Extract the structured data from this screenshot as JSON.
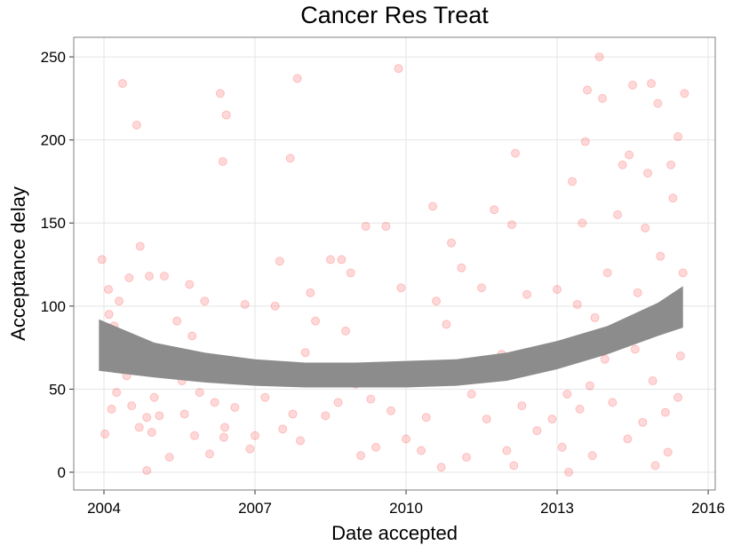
{
  "chart_data": {
    "type": "scatter",
    "title": "Cancer Res Treat",
    "x_label": "Date accepted",
    "y_label": "Acceptance delay",
    "color": "#ff0000",
    "x": [
      2003.96,
      2004.02,
      2004.09,
      2004.1,
      2004.15,
      2004.2,
      2004.25,
      2004.3,
      2004.37,
      2004.45,
      2004.5,
      2004.55,
      2004.65,
      2004.72,
      2004.7,
      2004.8,
      2004.85,
      2004.9,
      2004.95,
      2004.85,
      2005.0,
      2005.1,
      2005.2,
      2005.3,
      2005.35,
      2005.45,
      2005.55,
      2005.6,
      2005.7,
      2005.75,
      2005.8,
      2005.9,
      2006.0,
      2006.1,
      2006.2,
      2006.31,
      2006.36,
      2006.43,
      2006.4,
      2006.38,
      2006.6,
      2006.8,
      2006.9,
      2007.0,
      2007.1,
      2007.2,
      2007.4,
      2007.49,
      2007.55,
      2007.7,
      2007.75,
      2007.84,
      2007.9,
      2008.0,
      2008.1,
      2008.2,
      2008.4,
      2008.5,
      2008.65,
      2008.72,
      2008.8,
      2008.9,
      2009.0,
      2009.1,
      2009.2,
      2009.3,
      2009.4,
      2009.6,
      2009.7,
      2009.85,
      2009.9,
      2010.0,
      2010.1,
      2010.3,
      2010.4,
      2010.53,
      2010.6,
      2010.7,
      2010.8,
      2010.9,
      2011.1,
      2011.2,
      2011.3,
      2011.5,
      2011.6,
      2011.75,
      2011.9,
      2012.0,
      2012.1,
      2012.14,
      2012.17,
      2012.3,
      2012.4,
      2012.6,
      2012.8,
      2012.9,
      2013.0,
      2013.1,
      2013.2,
      2013.23,
      2013.3,
      2013.4,
      2013.45,
      2013.5,
      2013.56,
      2013.6,
      2013.65,
      2013.7,
      2013.75,
      2013.84,
      2013.9,
      2013.95,
      2014.0,
      2014.1,
      2014.2,
      2014.3,
      2014.4,
      2014.43,
      2014.5,
      2014.55,
      2014.6,
      2014.7,
      2014.75,
      2014.8,
      2014.87,
      2014.9,
      2014.95,
      2015.0,
      2015.05,
      2015.1,
      2015.15,
      2015.2,
      2015.26,
      2015.3,
      2015.35,
      2015.4,
      2015.45,
      2015.5,
      2015.53,
      2015.4
    ],
    "values": [
      128,
      23,
      110,
      95,
      38,
      88,
      48,
      103,
      234,
      58,
      117,
      40,
      209,
      136,
      27,
      62,
      33,
      118,
      24,
      1,
      45,
      34,
      118,
      9,
      64,
      91,
      55,
      35,
      113,
      82,
      22,
      48,
      103,
      11,
      42,
      228,
      187,
      215,
      27,
      21,
      39,
      101,
      14,
      22,
      58,
      45,
      100,
      127,
      26,
      189,
      35,
      237,
      19,
      72,
      108,
      91,
      34,
      128,
      42,
      128,
      85,
      120,
      53,
      10,
      148,
      44,
      15,
      148,
      37,
      243,
      111,
      20,
      57,
      13,
      33,
      160,
      103,
      3,
      89,
      138,
      123,
      9,
      47,
      111,
      32,
      158,
      71,
      13,
      149,
      4,
      192,
      40,
      107,
      25,
      65,
      32,
      110,
      15,
      47,
      0,
      175,
      101,
      38,
      150,
      199,
      230,
      52,
      10,
      93,
      250,
      225,
      68,
      120,
      42,
      155,
      185,
      20,
      191,
      233,
      74,
      108,
      30,
      147,
      180,
      234,
      55,
      4,
      222,
      130,
      88,
      36,
      12,
      185,
      165,
      103,
      202,
      70,
      120,
      228,
      45
    ],
    "smooth": {
      "color": "#8c8c8c",
      "x": [
        2003.9,
        2005,
        2006,
        2007,
        2008,
        2009,
        2010,
        2011,
        2012,
        2013,
        2014,
        2015,
        2015.5
      ],
      "lower": [
        61,
        57,
        54,
        52,
        51,
        51,
        51,
        52,
        55,
        62,
        71,
        82,
        87
      ],
      "upper": [
        92,
        78,
        72,
        68,
        66,
        66,
        67,
        68,
        72,
        79,
        88,
        102,
        112
      ]
    },
    "xlim": [
      2003.4,
      2016.14
    ],
    "ylim": [
      -10.7,
      261.8
    ],
    "xticks": [
      2004,
      2007,
      2010,
      2013,
      2016
    ],
    "yticks": [
      0,
      50,
      100,
      150,
      200,
      250
    ],
    "grid": true
  }
}
